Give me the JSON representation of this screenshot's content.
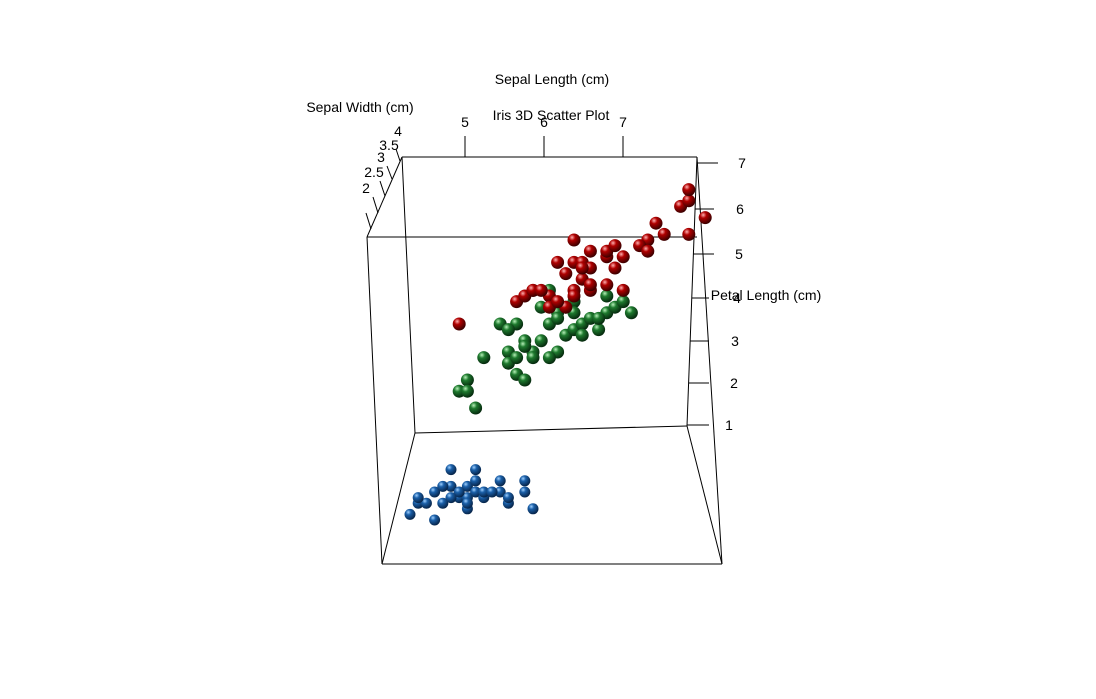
{
  "chart_data": {
    "type": "scatter",
    "title": "Iris 3D Scatter Plot",
    "x_axis": {
      "label": "Sepal Length (cm)",
      "ticks": [
        "5",
        "6",
        "7"
      ]
    },
    "y_axis": {
      "label": "Sepal Width (cm)",
      "ticks": [
        "2",
        "2.5",
        "3",
        "3.5",
        "4"
      ]
    },
    "z_axis": {
      "label": "Petal Length (cm)",
      "ticks": [
        "1",
        "2",
        "3",
        "4",
        "5",
        "6",
        "7"
      ]
    },
    "grid": false,
    "legend": "none",
    "series": [
      {
        "color": "#1a5fa8",
        "points": [
          [
            4.3,
            1.1
          ],
          [
            4.4,
            1.3
          ],
          [
            4.5,
            1.3
          ],
          [
            4.4,
            1.4
          ],
          [
            4.6,
            1.0
          ],
          [
            4.7,
            1.3
          ],
          [
            4.8,
            1.6
          ],
          [
            4.9,
            1.4
          ],
          [
            5.0,
            1.4
          ],
          [
            5.0,
            1.6
          ],
          [
            5.1,
            1.5
          ],
          [
            5.0,
            1.2
          ],
          [
            4.9,
            1.5
          ],
          [
            5.2,
            1.4
          ],
          [
            5.1,
            1.7
          ],
          [
            5.4,
            1.5
          ],
          [
            5.4,
            1.7
          ],
          [
            5.5,
            1.3
          ],
          [
            5.7,
            1.5
          ],
          [
            5.8,
            1.2
          ],
          [
            5.7,
            1.7
          ],
          [
            5.1,
            1.9
          ],
          [
            4.8,
            1.9
          ],
          [
            5.2,
            1.5
          ],
          [
            5.3,
            1.5
          ],
          [
            4.6,
            1.5
          ],
          [
            4.8,
            1.4
          ],
          [
            5.5,
            1.4
          ],
          [
            5.0,
            1.3
          ],
          [
            4.7,
            1.6
          ]
        ]
      },
      {
        "color": "#1e7a2e",
        "points": [
          [
            4.9,
            3.3
          ],
          [
            5.0,
            3.5
          ],
          [
            5.0,
            3.3
          ],
          [
            5.1,
            3.0
          ],
          [
            5.2,
            3.9
          ],
          [
            5.4,
            4.5
          ],
          [
            5.5,
            4.0
          ],
          [
            5.5,
            3.8
          ],
          [
            5.6,
            3.6
          ],
          [
            5.6,
            4.5
          ],
          [
            5.7,
            4.2
          ],
          [
            5.7,
            3.5
          ],
          [
            5.8,
            4.0
          ],
          [
            5.9,
            4.2
          ],
          [
            6.0,
            4.5
          ],
          [
            6.0,
            5.1
          ],
          [
            6.1,
            4.7
          ],
          [
            6.2,
            4.3
          ],
          [
            6.2,
            4.8
          ],
          [
            6.3,
            4.4
          ],
          [
            6.3,
            4.9
          ],
          [
            6.4,
            4.5
          ],
          [
            6.5,
            4.6
          ],
          [
            6.6,
            4.4
          ],
          [
            6.7,
            4.7
          ],
          [
            6.8,
            4.8
          ],
          [
            6.9,
            4.9
          ],
          [
            7.0,
            4.7
          ],
          [
            6.1,
            4.0
          ],
          [
            5.8,
            3.9
          ],
          [
            6.7,
            5.0
          ],
          [
            6.0,
            3.9
          ],
          [
            5.7,
            4.1
          ],
          [
            6.4,
            4.3
          ],
          [
            5.6,
            3.9
          ],
          [
            6.6,
            4.6
          ],
          [
            6.1,
            4.6
          ],
          [
            5.9,
            4.8
          ],
          [
            6.3,
            4.7
          ],
          [
            5.5,
            4.4
          ]
        ]
      },
      {
        "color": "#b00000",
        "points": [
          [
            4.9,
            4.5
          ],
          [
            5.6,
            4.9
          ],
          [
            5.7,
            5.0
          ],
          [
            5.8,
            5.1
          ],
          [
            5.8,
            5.1
          ],
          [
            6.0,
            5.0
          ],
          [
            6.1,
            5.6
          ],
          [
            6.2,
            5.4
          ],
          [
            6.3,
            5.6
          ],
          [
            6.3,
            5.1
          ],
          [
            6.4,
            5.3
          ],
          [
            6.4,
            5.6
          ],
          [
            6.5,
            5.5
          ],
          [
            6.5,
            5.8
          ],
          [
            6.7,
            5.7
          ],
          [
            6.7,
            5.2
          ],
          [
            6.8,
            5.5
          ],
          [
            6.9,
            5.7
          ],
          [
            7.2,
            6.0
          ],
          [
            7.4,
            6.1
          ],
          [
            7.6,
            6.6
          ],
          [
            7.7,
            6.7
          ],
          [
            7.7,
            6.1
          ],
          [
            7.9,
            6.4
          ],
          [
            7.7,
            6.9
          ],
          [
            7.3,
            6.3
          ],
          [
            7.1,
            5.9
          ],
          [
            6.3,
            6.0
          ],
          [
            6.5,
            5.1
          ],
          [
            6.7,
            5.8
          ],
          [
            6.2,
            4.8
          ],
          [
            6.0,
            4.8
          ],
          [
            6.1,
            4.9
          ],
          [
            6.3,
            5.0
          ],
          [
            6.9,
            5.1
          ],
          [
            6.4,
            5.5
          ],
          [
            7.2,
            5.8
          ],
          [
            6.8,
            5.9
          ],
          [
            5.9,
            5.1
          ],
          [
            6.5,
            5.2
          ]
        ]
      }
    ]
  }
}
